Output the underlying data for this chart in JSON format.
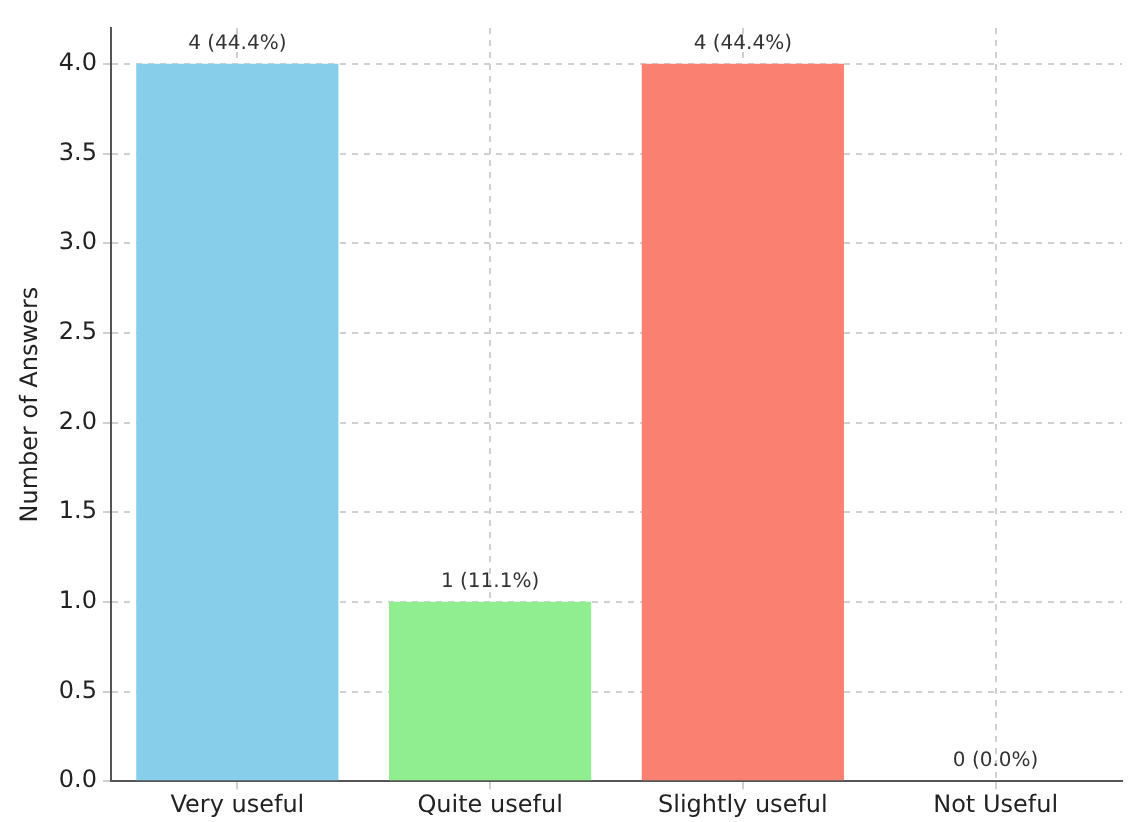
{
  "chart_data": {
    "type": "bar",
    "ylabel": "Number of Answers",
    "categories": [
      "Very useful",
      "Quite useful",
      "Slightly useful",
      "Not Useful"
    ],
    "values": [
      4,
      1,
      4,
      0
    ],
    "colors": [
      "#87ceeb",
      "#90ee90",
      "#fa8072",
      "#ffa500"
    ],
    "value_labels": [
      "4 (44.4%)",
      "1 (11.1%)",
      "4 (44.4%)",
      "0 (0.0%)"
    ],
    "ylim": [
      0,
      4.2
    ],
    "yticks": [
      {
        "value": 0,
        "label": "0.0"
      },
      0.5,
      {
        "value": 1,
        "label": "1.0"
      },
      1.5,
      {
        "value": 2,
        "label": "2.0"
      },
      2.5,
      {
        "value": 3,
        "label": "3.0"
      },
      3.5,
      {
        "value": 4,
        "label": "4.0"
      }
    ],
    "grid": true
  }
}
